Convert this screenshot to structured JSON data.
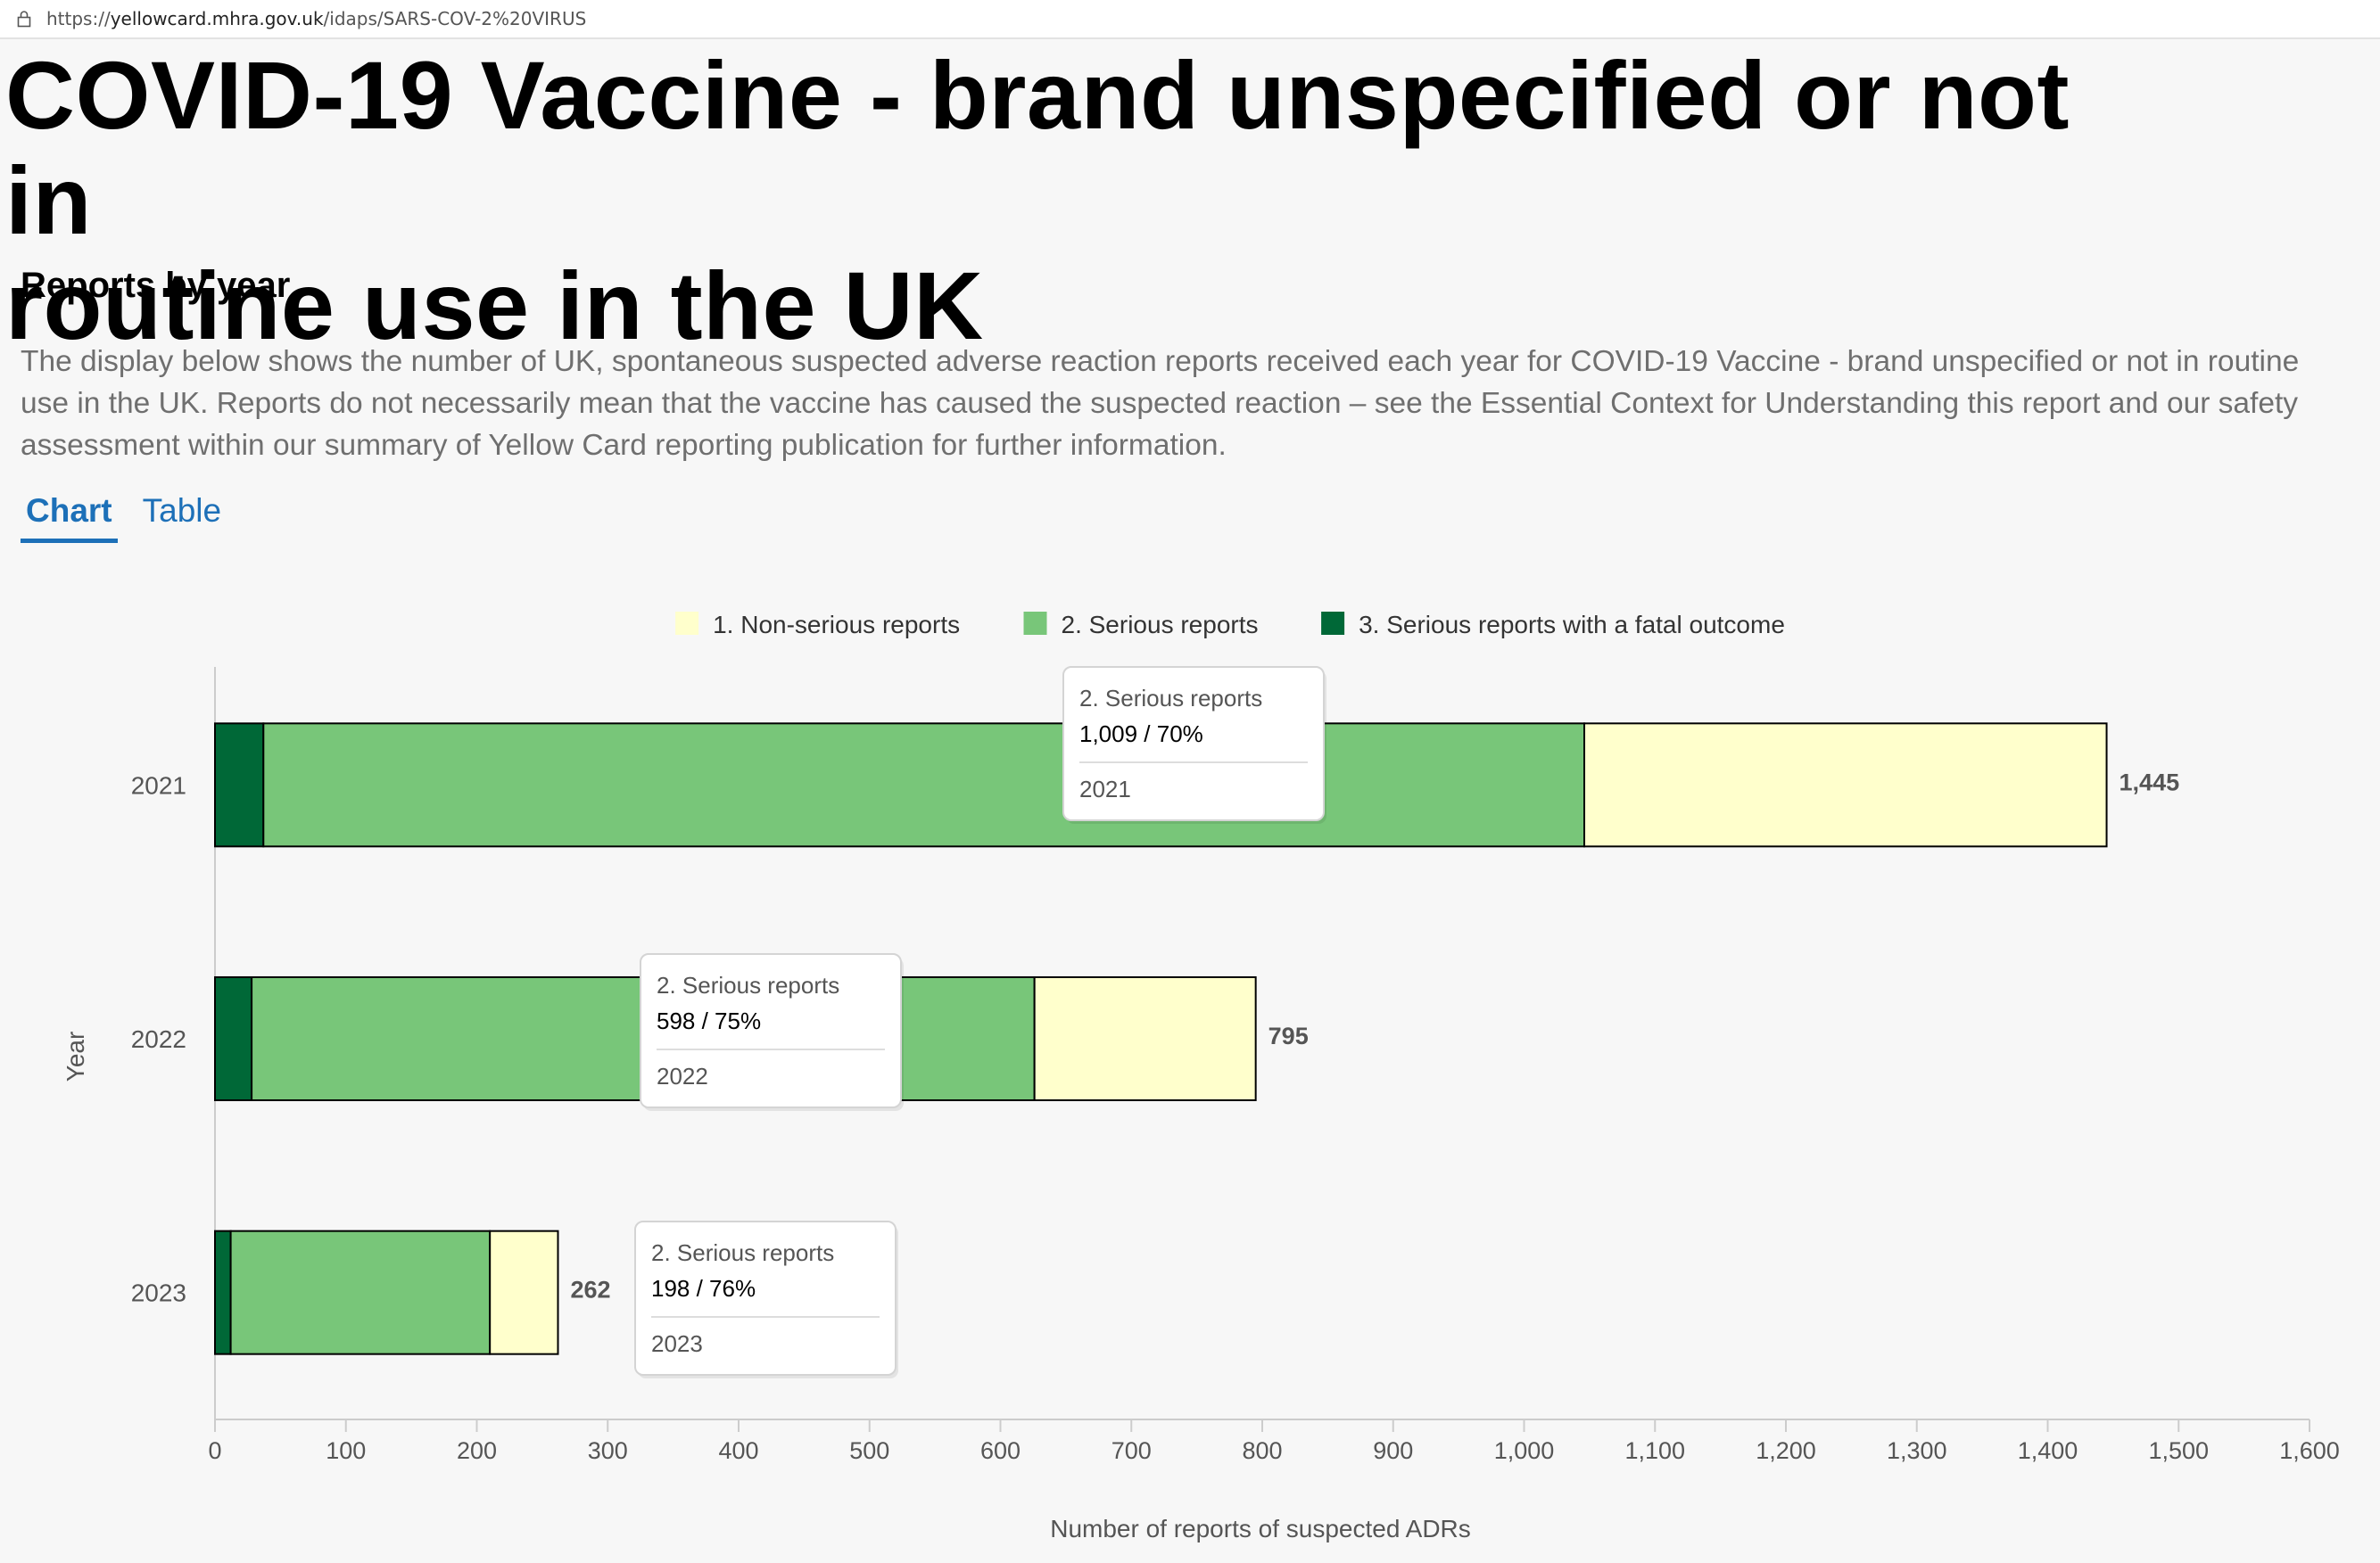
{
  "browser": {
    "url_host": "yellowcard.mhra.gov.uk",
    "url_path": "/idaps/SARS-COV-2%20VIRUS",
    "url_scheme": "https://"
  },
  "page": {
    "title_line1": "COVID-19 Vaccine - brand unspecified or not in",
    "title_line2": "routine use in the UK",
    "subtitle": "Reports by year",
    "description": "The display below shows the number of UK, spontaneous suspected adverse reaction reports received each year for COVID-19 Vaccine - brand unspecified or not in routine use in the UK. Reports do not necessarily mean that the vaccine has caused the suspected reaction – see the Essential Context for Understanding this report and our safety assessment within our summary of Yellow Card reporting publication for further information."
  },
  "tabs": [
    {
      "label": "Chart",
      "active": true
    },
    {
      "label": "Table",
      "active": false
    }
  ],
  "chart_data": {
    "type": "bar",
    "orientation": "horizontal",
    "stacked": true,
    "categories": [
      "2021",
      "2022",
      "2023"
    ],
    "series": [
      {
        "name": "3. Serious reports with a fatal outcome",
        "color": "#006837",
        "values": [
          37,
          28,
          12
        ]
      },
      {
        "name": "2. Serious reports",
        "color": "#78c679",
        "values": [
          1009,
          598,
          198
        ]
      },
      {
        "name": "1. Non-serious reports",
        "color": "#ffffcc",
        "values": [
          399,
          169,
          52
        ]
      }
    ],
    "totals": [
      "1,445",
      "795",
      "262"
    ],
    "legend": {
      "placement": "top-center",
      "items": [
        {
          "label": "1. Non-serious reports",
          "color": "#ffffcc"
        },
        {
          "label": "2. Serious reports",
          "color": "#78c679"
        },
        {
          "label": "3. Serious reports with a fatal outcome",
          "color": "#006837"
        }
      ]
    },
    "xlabel": "Number of reports of suspected ADRs",
    "ylabel": "Year",
    "xlim": [
      0,
      1600
    ],
    "xticks": [
      "0",
      "100",
      "200",
      "300",
      "400",
      "500",
      "600",
      "700",
      "800",
      "900",
      "1,000",
      "1,100",
      "1,200",
      "1,300",
      "1,400",
      "1,500",
      "1,600"
    ],
    "tooltips": [
      {
        "series": "2. Serious reports",
        "value": "1,009 / 70%",
        "category": "2021"
      },
      {
        "series": "2. Serious reports",
        "value": "598 / 75%",
        "category": "2022"
      },
      {
        "series": "2. Serious reports",
        "value": "198 / 76%",
        "category": "2023"
      }
    ]
  }
}
